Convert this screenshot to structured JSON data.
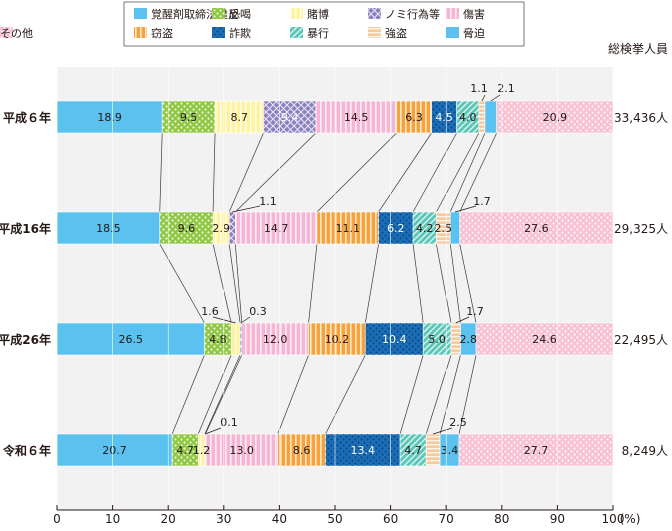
{
  "chart_data": {
    "type": "bar",
    "orientation": "horizontal",
    "stacked": true,
    "normalized": true,
    "legend_placement": "top",
    "xaxis": {
      "ticks": [
        0,
        10,
        20,
        30,
        40,
        50,
        60,
        70,
        80,
        90,
        100
      ],
      "unit_label": "(%)",
      "xlim": [
        0,
        100
      ]
    },
    "total_header": "総検挙人員",
    "categories": [
      "平成６年",
      "平成16年",
      "平成26年",
      "令和６年"
    ],
    "totals": [
      "33,436人",
      "29,325人",
      "22,495人",
      "8,249人"
    ],
    "series": [
      {
        "name": "覚醒剤取締法違反",
        "color": "#5bc1ee",
        "pattern": "solid",
        "values": [
          18.9,
          18.5,
          26.5,
          20.7
        ]
      },
      {
        "name": "恐喝",
        "color": "#8dc63f",
        "pattern": "dots",
        "values": [
          9.5,
          9.6,
          4.8,
          4.7
        ]
      },
      {
        "name": "賭博",
        "color": "#fff2a0",
        "pattern": "vlines",
        "values": [
          8.7,
          2.9,
          1.6,
          1.2
        ]
      },
      {
        "name": "ノミ行為等",
        "color": "#8a7fc0",
        "pattern": "cross",
        "values": [
          9.4,
          1.1,
          0.3,
          0.1
        ]
      },
      {
        "name": "傷害",
        "color": "#f5b5d3",
        "pattern": "vlines",
        "values": [
          14.5,
          14.7,
          12.0,
          13.0
        ]
      },
      {
        "name": "窃盗",
        "color": "#f7a23b",
        "pattern": "vlines",
        "values": [
          6.3,
          11.1,
          10.2,
          8.6
        ]
      },
      {
        "name": "詐欺",
        "color": "#1a6fb7",
        "pattern": "dots",
        "values": [
          4.5,
          6.2,
          10.4,
          13.4
        ]
      },
      {
        "name": "暴行",
        "color": "#5cc6b8",
        "pattern": "diag",
        "values": [
          4.0,
          4.2,
          5.0,
          4.7
        ]
      },
      {
        "name": "強盗",
        "color": "#f9c89b",
        "pattern": "hlines",
        "values": [
          1.1,
          2.5,
          1.7,
          2.5
        ]
      },
      {
        "name": "脅迫",
        "color": "#5bc1ee",
        "pattern": "solid",
        "values": [
          2.1,
          1.7,
          2.8,
          3.4
        ]
      },
      {
        "name": "その他",
        "color": "#f7c0d3",
        "pattern": "dots",
        "values": [
          20.9,
          27.6,
          24.6,
          27.7
        ]
      }
    ],
    "labels": [
      [
        "18.9",
        "9.5",
        "8.7",
        "9.4",
        "14.5",
        "6.3",
        "4.5",
        "4.0",
        "1.1",
        "2.1",
        "20.9"
      ],
      [
        "18.5",
        "9.6",
        "2.9",
        "1.1",
        "14.7",
        "11.1",
        "6.2",
        "4.2",
        "2.5",
        "1.7",
        "27.6"
      ],
      [
        "26.5",
        "4.8",
        "1.6",
        "0.3",
        "12.0",
        "10.2",
        "10.4",
        "5.0",
        "1.7",
        "2.8",
        "24.6"
      ],
      [
        "20.7",
        "4.7",
        "1.2",
        "0.1",
        "13.0",
        "8.6",
        "13.4",
        "4.7",
        "2.5",
        "3.4",
        "27.7"
      ]
    ],
    "outside_labels": [
      [
        8,
        9
      ],
      [
        3,
        9
      ],
      [
        2,
        3,
        8
      ],
      [
        3,
        8
      ]
    ]
  }
}
